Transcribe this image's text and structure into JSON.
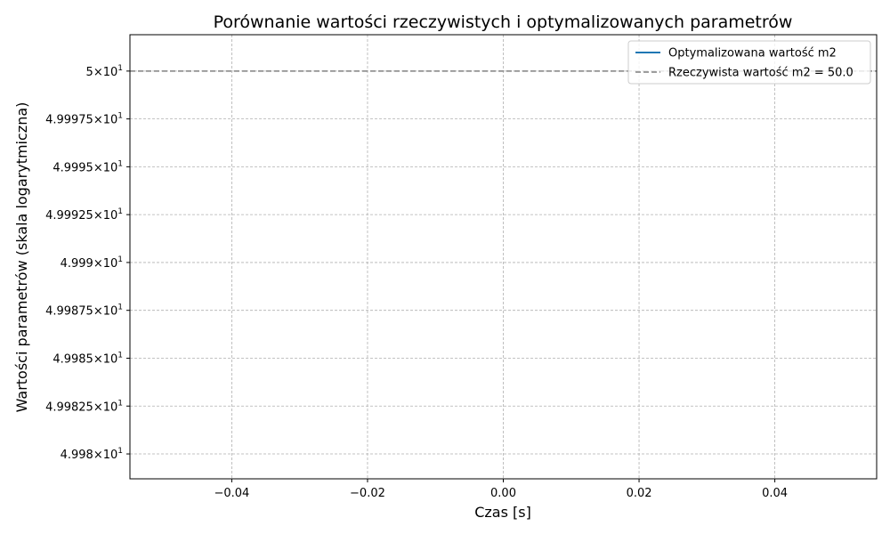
{
  "chart_data": {
    "type": "line",
    "title": "Porównanie wartości rzeczywistych i optymalizowanych parametrów",
    "xlabel": "Czas [s]",
    "ylabel": "Wartości parametrów (skala logarytmiczna)",
    "x_scale": "linear",
    "y_scale": "log",
    "xlim": [
      -0.055,
      0.055
    ],
    "ylim": [
      49.9787,
      50.0019
    ],
    "x_ticks": [
      -0.04,
      -0.02,
      0.0,
      0.02,
      0.04
    ],
    "x_tick_labels": [
      "−0.04",
      "−0.02",
      "0.00",
      "0.02",
      "0.04"
    ],
    "y_ticks": [
      {
        "value": 50.0,
        "mantissa": "5",
        "exponent": "1"
      },
      {
        "value": 49.9975,
        "mantissa": "4.99975",
        "exponent": "1"
      },
      {
        "value": 49.995,
        "mantissa": "4.9995",
        "exponent": "1"
      },
      {
        "value": 49.9925,
        "mantissa": "4.99925",
        "exponent": "1"
      },
      {
        "value": 49.99,
        "mantissa": "4.999",
        "exponent": "1"
      },
      {
        "value": 49.9875,
        "mantissa": "4.99875",
        "exponent": "1"
      },
      {
        "value": 49.985,
        "mantissa": "4.9985",
        "exponent": "1"
      },
      {
        "value": 49.9825,
        "mantissa": "4.99825",
        "exponent": "1"
      },
      {
        "value": 49.98,
        "mantissa": "4.998",
        "exponent": "1"
      }
    ],
    "grid": true,
    "legend_position": "upper right",
    "series": [
      {
        "name": "Optymalizowana wartość m2",
        "style": "solid",
        "color": "#1f77b4",
        "x": [
          0.0
        ],
        "y": [
          50.0
        ]
      },
      {
        "name": "Rzeczywista wartość m2 = 50.0",
        "style": "dashed",
        "color": "#808080",
        "hline": 50.0
      }
    ]
  }
}
